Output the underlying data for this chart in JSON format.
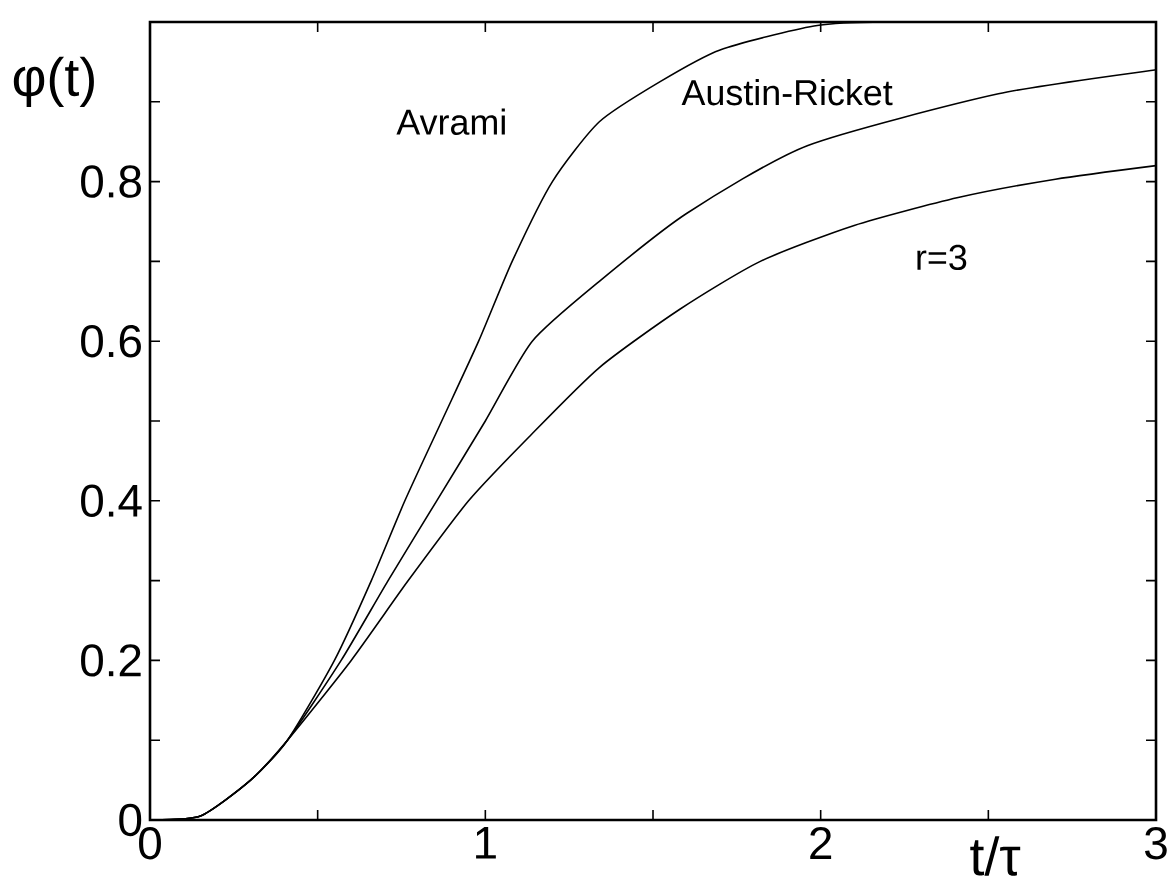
{
  "chart_data": {
    "type": "line",
    "xlabel": "t/τ",
    "ylabel": "φ(t)",
    "xlim": [
      0,
      3
    ],
    "ylim": [
      0,
      1
    ],
    "xticks": [
      0,
      {
        "value": 0.5,
        "label": null
      },
      1,
      {
        "value": 1.5,
        "label": null
      },
      2,
      {
        "value": 2.5,
        "label": null
      },
      3
    ],
    "yticks": [
      0,
      {
        "value": 0.1,
        "label": null
      },
      0.2,
      {
        "value": 0.3,
        "label": null
      },
      0.4,
      {
        "value": 0.5,
        "label": null
      },
      0.6,
      {
        "value": 0.7,
        "label": null
      },
      0.8,
      {
        "value": 0.9,
        "label": null
      }
    ],
    "series": [
      {
        "name": "Avrami",
        "color": "#000000",
        "x": [
          0,
          0.15,
          0.3,
          0.41,
          0.55,
          0.66,
          0.76,
          0.87,
          0.98,
          1.08,
          1.2,
          1.34,
          1.52,
          1.7,
          1.98,
          2.2,
          3
        ],
        "values": [
          0,
          0.005,
          0.05,
          0.1,
          0.2,
          0.3,
          0.4,
          0.5,
          0.6,
          0.7,
          0.8,
          0.875,
          0.925,
          0.965,
          0.995,
          1.0,
          1.0
        ]
      },
      {
        "name": "Austin-Ricket",
        "color": "#000000",
        "x": [
          0,
          0.15,
          0.3,
          0.41,
          0.57,
          0.71,
          0.855,
          1.0,
          1.14,
          1.34,
          1.6,
          1.96,
          2.53,
          3
        ],
        "values": [
          0,
          0.005,
          0.05,
          0.1,
          0.2,
          0.3,
          0.4,
          0.5,
          0.6,
          0.675,
          0.76,
          0.845,
          0.91,
          0.94
        ]
      },
      {
        "name": "r=3",
        "color": "#000000",
        "x": [
          0,
          0.15,
          0.3,
          0.41,
          0.6,
          0.77,
          0.95,
          1.13,
          1.34,
          1.58,
          1.82,
          2.1,
          2.41,
          2.7,
          3
        ],
        "values": [
          0,
          0.005,
          0.05,
          0.1,
          0.2,
          0.3,
          0.4,
          0.48,
          0.567,
          0.64,
          0.7,
          0.745,
          0.78,
          0.803,
          0.82
        ]
      }
    ]
  }
}
